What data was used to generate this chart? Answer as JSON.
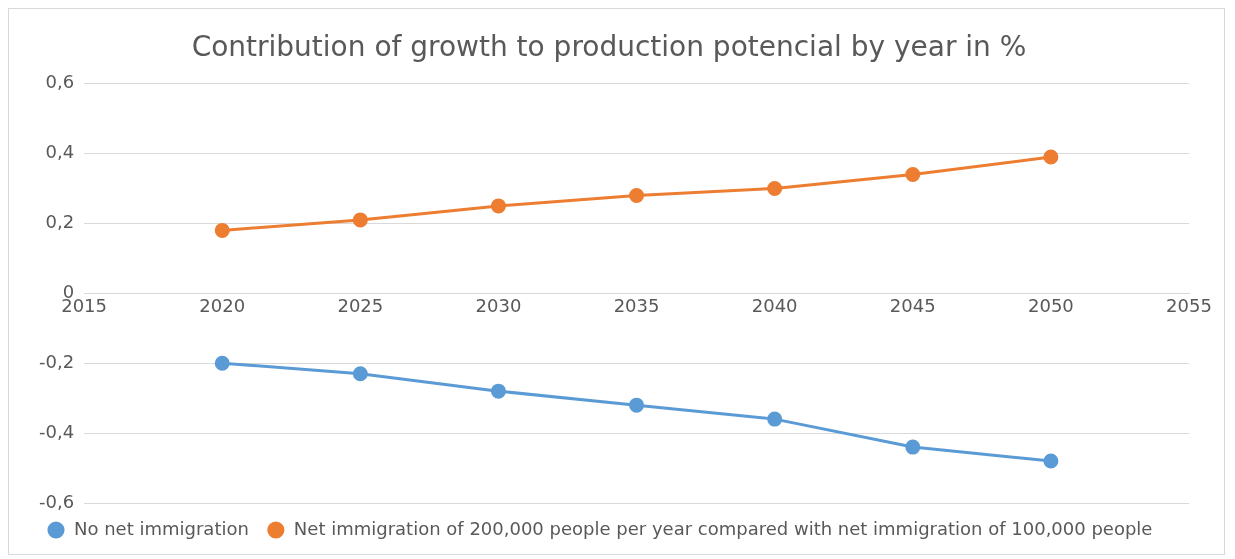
{
  "chart_data": {
    "type": "line",
    "title": "Contribution of growth to production potencial by year in %",
    "x": [
      2020,
      2025,
      2030,
      2035,
      2040,
      2045,
      2050
    ],
    "xlim": [
      2015,
      2055
    ],
    "xticks": [
      2015,
      2020,
      2025,
      2030,
      2035,
      2040,
      2045,
      2050,
      2055
    ],
    "ylim": [
      -0.6,
      0.6
    ],
    "yticks": [
      {
        "value": -0.6,
        "label": "-0,6"
      },
      {
        "value": -0.4,
        "label": "-0,4"
      },
      {
        "value": -0.2,
        "label": "-0,2"
      },
      0,
      {
        "value": 0.2,
        "label": "0,2"
      },
      {
        "value": 0.4,
        "label": "0,4"
      },
      {
        "value": 0.6,
        "label": "0,6"
      }
    ],
    "series": [
      {
        "name": "No net immigration",
        "color": "#5b9bd5",
        "values": [
          -0.2,
          -0.23,
          -0.28,
          -0.32,
          -0.36,
          -0.44,
          -0.48
        ]
      },
      {
        "name": "Net immigration of 200,000 people per year compared with net immigration of 100,000 people",
        "color": "#ed7d31",
        "values": [
          0.18,
          0.21,
          0.25,
          0.28,
          0.3,
          0.34,
          0.39
        ]
      }
    ],
    "grid": "y",
    "legend": "bottom",
    "marker": "circle",
    "line_style": "solid"
  }
}
